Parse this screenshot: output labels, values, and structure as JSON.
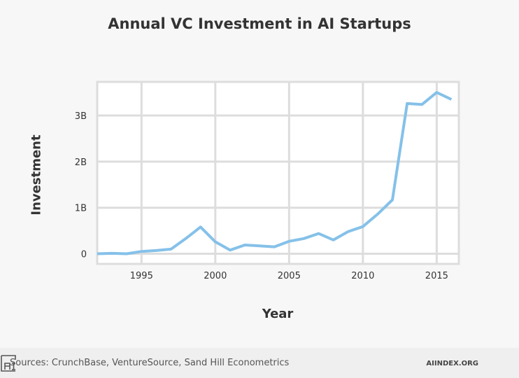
{
  "chart_data": {
    "type": "line",
    "title": "Annual VC Investment in AI Startups",
    "xlabel": "Year",
    "ylabel": "Investment",
    "x": [
      1992,
      1993,
      1994,
      1995,
      1996,
      1997,
      1998,
      1999,
      2000,
      2001,
      2002,
      2003,
      2004,
      2005,
      2006,
      2007,
      2008,
      2009,
      2010,
      2011,
      2012,
      2013,
      2014,
      2015,
      2016
    ],
    "series": [
      {
        "values": [
          0,
          0.01,
          0,
          0.05,
          0.07,
          0.1,
          0.33,
          0.58,
          0.26,
          0.08,
          0.19,
          0.17,
          0.15,
          0.27,
          0.33,
          0.44,
          0.3,
          0.48,
          0.59,
          0.86,
          1.17,
          3.26,
          3.24,
          3.5,
          3.35
        ]
      }
    ],
    "y_unit": "billions USD",
    "xlim": [
      1992,
      2016.5
    ],
    "ylim": [
      -0.22,
      3.73
    ],
    "x_ticks": [
      1995,
      2000,
      2005,
      2010,
      2015
    ],
    "x_tick_labels": [
      "1995",
      "2000",
      "2005",
      "2010",
      "2015"
    ],
    "y_ticks": [
      0,
      1,
      2,
      3
    ],
    "y_tick_labels": [
      "0",
      "1B",
      "2B",
      "3B"
    ],
    "grid": true,
    "line_color": "#85c1e9"
  },
  "footer": {
    "sources": "Sources: CrunchBase, VentureSource, Sand Hill Econometrics",
    "site": "AIINDEX.ORG",
    "logo_text": "AI"
  }
}
